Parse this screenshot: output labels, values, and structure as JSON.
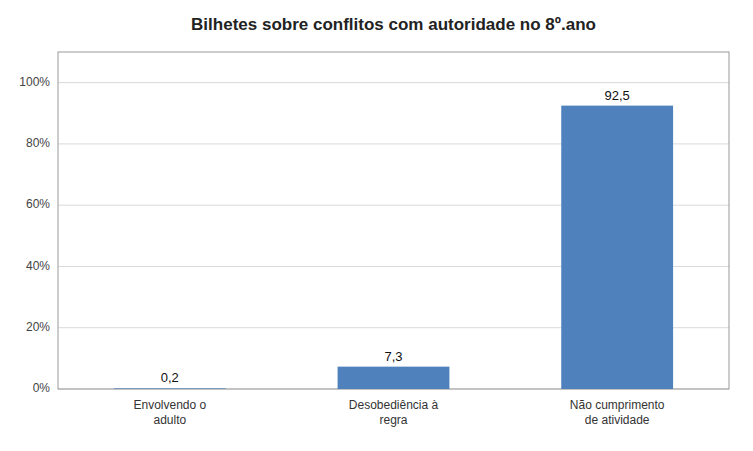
{
  "chart_data": {
    "type": "bar",
    "title": "Bilhetes sobre conflitos com autoridade no 8º.ano",
    "categories": [
      "Envolvendo o\nadulto",
      "Desobediência à\nregra",
      "Não cumprimento\nde atividade"
    ],
    "values": [
      0.2,
      7.3,
      92.5
    ],
    "value_labels": [
      "0,2",
      "7,3",
      "92,5"
    ],
    "color": "#4F81BD",
    "ylim": [
      0,
      110
    ],
    "yticks": [
      {
        "value": 0,
        "label": "0%"
      },
      {
        "value": 20,
        "label": "20%"
      },
      {
        "value": 40,
        "label": "40%"
      },
      {
        "value": 60,
        "label": "60%"
      },
      {
        "value": 80,
        "label": "80%"
      },
      {
        "value": 100,
        "label": "100%"
      }
    ],
    "grid": true,
    "data_labels": true
  }
}
